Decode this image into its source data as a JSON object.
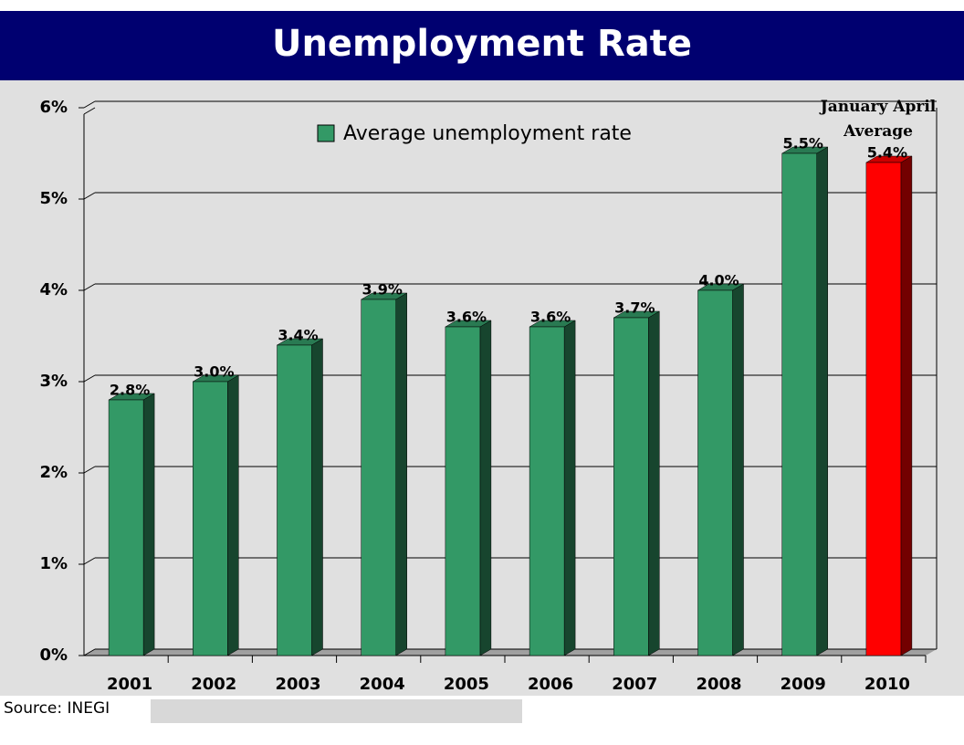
{
  "chart_data": {
    "type": "bar3d",
    "title": "Unemployment Rate",
    "categories": [
      "2001",
      "2002",
      "2003",
      "2004",
      "2005",
      "2006",
      "2007",
      "2008",
      "2009",
      "2010"
    ],
    "series": [
      {
        "name": "Average unemployment rate",
        "color": "#339966",
        "values": [
          2.8,
          3.0,
          3.4,
          3.9,
          3.6,
          3.6,
          3.7,
          4.0,
          5.5,
          5.4
        ],
        "value_labels": [
          "2.8%",
          "3.0%",
          "3.4%",
          "3.9%",
          "3.6%",
          "3.6%",
          "3.7%",
          "4.0%",
          "5.5%",
          "5.4%"
        ],
        "colors": [
          "#339966",
          "#339966",
          "#339966",
          "#339966",
          "#339966",
          "#339966",
          "#339966",
          "#339966",
          "#339966",
          "#ff0000"
        ]
      }
    ],
    "ylim": [
      0,
      6
    ],
    "yticks": [
      {
        "value": 0,
        "label": "0%"
      },
      {
        "value": 1,
        "label": "1%"
      },
      {
        "value": 2,
        "label": "2%"
      },
      {
        "value": 3,
        "label": "3%"
      },
      {
        "value": 4,
        "label": "4%"
      },
      {
        "value": 5,
        "label": "5%"
      },
      {
        "value": 6,
        "label": "6%"
      }
    ],
    "grid": true,
    "annotation": "January April Average",
    "source": "Source: INEGI"
  }
}
